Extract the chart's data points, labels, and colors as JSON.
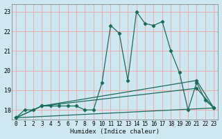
{
  "xlabel": "Humidex (Indice chaleur)",
  "ylabel": "",
  "bg_color": "#cde8f0",
  "grid_color": "#f0aaaa",
  "line_color": "#1a6b5a",
  "xlim": [
    -0.5,
    23.5
  ],
  "ylim": [
    17.5,
    23.4
  ],
  "yticks": [
    18,
    19,
    20,
    21,
    22,
    23
  ],
  "xticks": [
    0,
    1,
    2,
    3,
    4,
    5,
    6,
    7,
    8,
    9,
    10,
    11,
    12,
    13,
    14,
    15,
    16,
    17,
    18,
    19,
    20,
    21,
    22,
    23
  ],
  "lines": [
    {
      "x": [
        0,
        1,
        2,
        3,
        4,
        5,
        6,
        7,
        8,
        9,
        10,
        11,
        12,
        13,
        14,
        15,
        16,
        17,
        18,
        19,
        20,
        21,
        22,
        23
      ],
      "y": [
        17.6,
        18.0,
        18.0,
        18.2,
        18.2,
        18.2,
        18.2,
        18.2,
        18.0,
        18.0,
        19.4,
        22.3,
        21.9,
        19.5,
        23.0,
        22.4,
        22.3,
        22.5,
        21.0,
        19.9,
        18.0,
        19.4,
        18.5,
        18.1
      ]
    },
    {
      "x": [
        0,
        23
      ],
      "y": [
        17.6,
        18.1
      ]
    },
    {
      "x": [
        0,
        3,
        21,
        23
      ],
      "y": [
        17.6,
        18.2,
        19.1,
        18.1
      ]
    },
    {
      "x": [
        0,
        3,
        21,
        23
      ],
      "y": [
        17.6,
        18.2,
        19.5,
        18.1
      ]
    }
  ]
}
